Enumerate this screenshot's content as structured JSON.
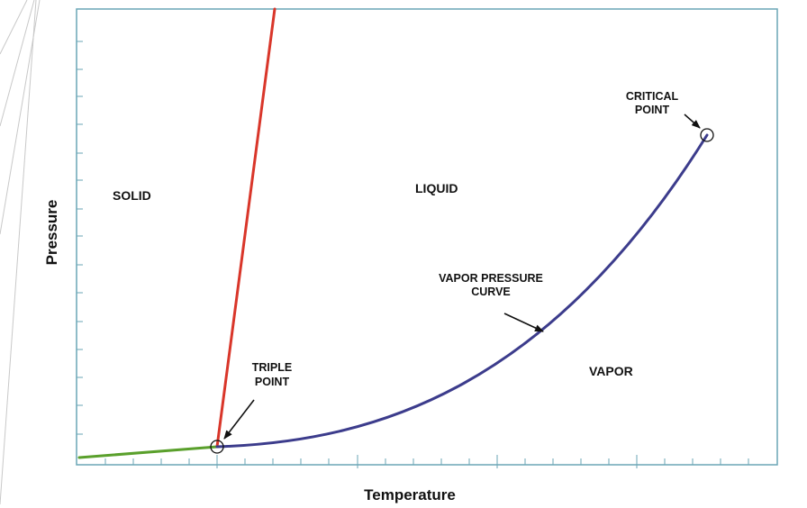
{
  "diagram": {
    "xlabel": "Temperature",
    "ylabel": "Pressure",
    "regions": {
      "solid": "SOLID",
      "liquid": "LIQUID",
      "vapor": "VAPOR"
    },
    "annotations": {
      "critical_line1": "CRITICAL",
      "critical_line2": "POINT",
      "vpc_line1": "VAPOR PRESSURE",
      "vpc_line2": "CURVE",
      "triple_line1": "TRIPLE",
      "triple_line2": "POINT"
    },
    "colors": {
      "fusion_curve": "#d9362a",
      "sublimation_curve": "#5aa02c",
      "vapor_pressure_curve": "#3c3c8c",
      "frame": "#6aa6b6",
      "text": "#111111"
    }
  }
}
